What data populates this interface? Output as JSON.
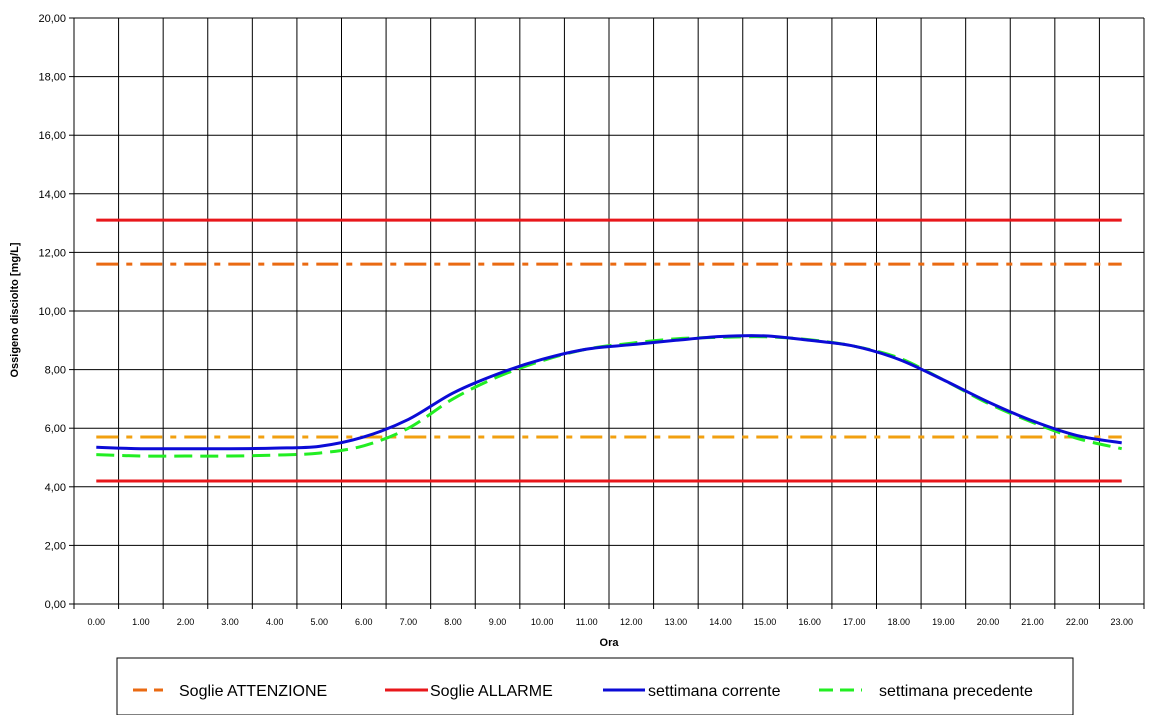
{
  "chart_data": {
    "type": "line",
    "xlabel": "Ora",
    "ylabel": "Ossigeno disciolto [mg/L]",
    "ylim": [
      0,
      20
    ],
    "yticks": [
      0,
      2,
      4,
      6,
      8,
      10,
      12,
      14,
      16,
      18,
      20
    ],
    "ytick_labels": [
      "0,00",
      "2,00",
      "4,00",
      "6,00",
      "8,00",
      "10,00",
      "12,00",
      "14,00",
      "16,00",
      "18,00",
      "20,00"
    ],
    "categories": [
      "0.00",
      "1.00",
      "2.00",
      "3.00",
      "4.00",
      "5.00",
      "6.00",
      "7.00",
      "8.00",
      "9.00",
      "10.00",
      "11.00",
      "12.00",
      "13.00",
      "14.00",
      "15.00",
      "16.00",
      "17.00",
      "18.00",
      "19.00",
      "20.00",
      "21.00",
      "22.00",
      "23.00"
    ],
    "grid": true,
    "legend_position": "bottom",
    "thresholds": [
      {
        "group": "Soglie ATTENZIONE",
        "value": 11.6,
        "color": "#ea6a12",
        "style": "dash-dot"
      },
      {
        "group": "Soglie ATTENZIONE",
        "value": 5.7,
        "color": "#f2a010",
        "style": "dash-dot"
      },
      {
        "group": "Soglie ALLARME",
        "value": 13.1,
        "color": "#e8171b",
        "style": "solid"
      },
      {
        "group": "Soglie ALLARME",
        "value": 4.2,
        "color": "#e8171b",
        "style": "solid"
      }
    ],
    "series": [
      {
        "name": "settimana corrente",
        "color": "#0b0bd6",
        "style": "solid",
        "values": [
          5.35,
          5.3,
          5.3,
          5.3,
          5.32,
          5.38,
          5.7,
          6.3,
          7.2,
          7.85,
          8.35,
          8.7,
          8.85,
          9.0,
          9.13,
          9.15,
          9.0,
          8.8,
          8.35,
          7.65,
          6.9,
          6.25,
          5.75,
          5.5
        ]
      },
      {
        "name": "settimana precedente",
        "color": "#22ee22",
        "style": "dashed",
        "values": [
          5.1,
          5.05,
          5.05,
          5.05,
          5.08,
          5.15,
          5.4,
          6.0,
          7.0,
          7.75,
          8.3,
          8.7,
          8.9,
          9.05,
          9.1,
          9.12,
          9.02,
          8.8,
          8.4,
          7.65,
          6.85,
          6.2,
          5.65,
          5.3
        ]
      }
    ],
    "legend": [
      {
        "label": "Soglie ATTENZIONE",
        "color": "#ea6a12",
        "style": "dashed"
      },
      {
        "label": "Soglie ALLARME",
        "color": "#e8171b",
        "style": "solid"
      },
      {
        "label": "settimana corrente",
        "color": "#0b0bd6",
        "style": "solid"
      },
      {
        "label": "settimana precedente",
        "color": "#22ee22",
        "style": "dashed"
      }
    ]
  }
}
